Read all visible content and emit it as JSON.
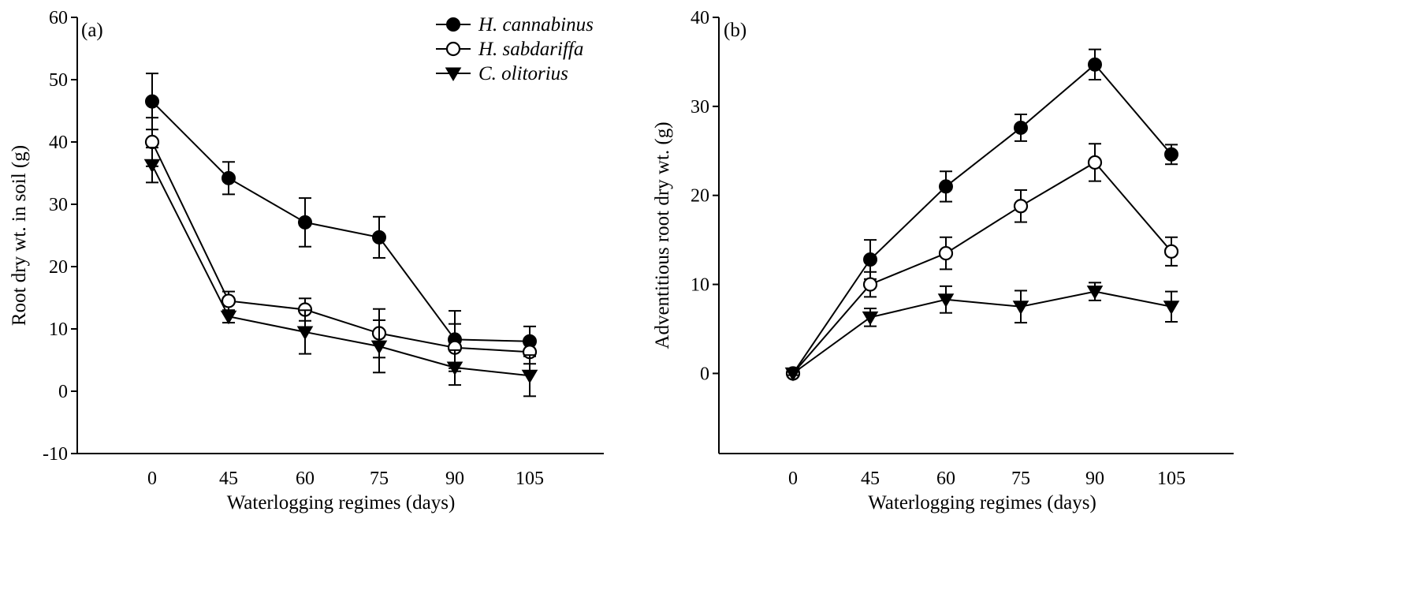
{
  "chart_data": [
    {
      "type": "line",
      "panel_label": "(a)",
      "categories": [
        "0",
        "45",
        "60",
        "75",
        "90",
        "105"
      ],
      "xlabel": "Waterlogging regimes (days)",
      "ylabel": "Root dry wt. in soil (g)",
      "ylim": [
        -10,
        60
      ],
      "yticks": [
        -10,
        0,
        10,
        20,
        30,
        40,
        50,
        60
      ],
      "grid": false,
      "legend_position": "top-right",
      "series": [
        {
          "name": "H. cannabinus",
          "marker": "filled-circle",
          "values": [
            46.5,
            34.2,
            27.1,
            24.7,
            8.3,
            8.0
          ],
          "errors": [
            4.5,
            2.6,
            3.9,
            3.3,
            4.6,
            2.4
          ]
        },
        {
          "name": "H. sabdariffa",
          "marker": "open-circle",
          "values": [
            40.0,
            14.5,
            13.1,
            9.3,
            7.0,
            6.3
          ],
          "errors": [
            3.9,
            1.5,
            1.8,
            3.9,
            3.8,
            1.9
          ]
        },
        {
          "name": "C. olitorius",
          "marker": "filled-triangle-down",
          "values": [
            36.3,
            12.0,
            9.5,
            7.2,
            3.8,
            2.5
          ],
          "errors": [
            2.8,
            1.0,
            3.5,
            4.2,
            2.8,
            3.3
          ]
        }
      ]
    },
    {
      "type": "line",
      "panel_label": "(b)",
      "categories": [
        "0",
        "45",
        "60",
        "75",
        "90",
        "105"
      ],
      "xlabel": "Waterlogging regimes (days)",
      "ylabel": "Adventitious root dry wt. (g)",
      "ylim": [
        -9,
        40
      ],
      "yticks": [
        0,
        10,
        20,
        30,
        40
      ],
      "grid": false,
      "series": [
        {
          "name": "H. cannabinus",
          "marker": "filled-circle",
          "values": [
            0,
            12.8,
            21.0,
            27.6,
            34.7,
            24.6
          ],
          "errors": [
            0.2,
            2.2,
            1.7,
            1.5,
            1.7,
            1.1
          ]
        },
        {
          "name": "H. sabdariffa",
          "marker": "open-circle",
          "values": [
            0,
            10.0,
            13.5,
            18.8,
            23.7,
            13.7
          ],
          "errors": [
            0.2,
            1.4,
            1.8,
            1.8,
            2.1,
            1.6
          ]
        },
        {
          "name": "C. olitorius",
          "marker": "filled-triangle-down",
          "values": [
            0,
            6.3,
            8.3,
            7.5,
            9.2,
            7.5
          ],
          "errors": [
            0.2,
            1.0,
            1.5,
            1.8,
            1.0,
            1.7
          ]
        }
      ]
    }
  ],
  "colors": {
    "ink": "#000000",
    "background": "#ffffff"
  }
}
